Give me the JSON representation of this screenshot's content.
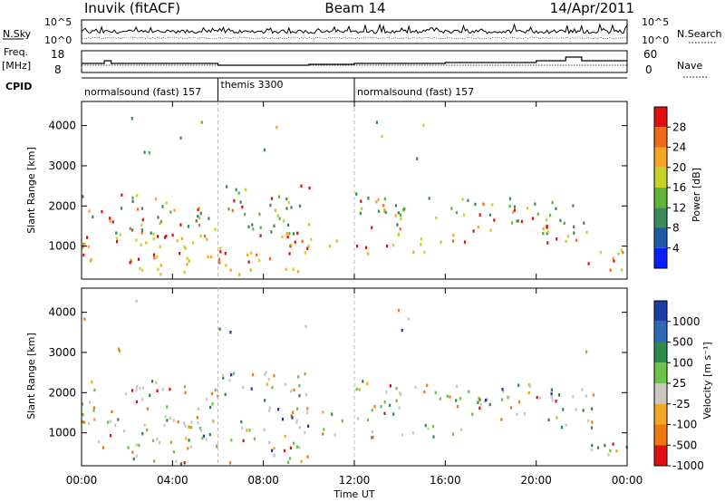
{
  "header": {
    "title_left": "Inuvik (fitACF)",
    "title_center": "Beam 14",
    "title_right": "14/Apr/2011"
  },
  "noise_panel": {
    "left_label": "N.Sky",
    "right_label": "N.Search",
    "left_ticks": [
      "10^5",
      "10^0"
    ],
    "right_ticks": [
      "10^5",
      "10^0"
    ]
  },
  "freq_panel": {
    "left_label_line1": "Freq.",
    "left_label_line2": "[MHz]",
    "right_label": "Nave",
    "left_ticks": [
      "18",
      "8"
    ],
    "right_ticks": [
      "60",
      "0"
    ]
  },
  "cpid": {
    "label": "CPID",
    "segments": [
      {
        "name": "normalsound (fast) 157",
        "start_hour": 0,
        "end_hour": 6
      },
      {
        "name": "themis 3300",
        "start_hour": 6,
        "end_hour": 12
      },
      {
        "name": "normalsound (fast) 157",
        "start_hour": 12,
        "end_hour": 24
      }
    ]
  },
  "chart_data": [
    {
      "type": "heatmap",
      "title": "",
      "xlabel": "Time UT",
      "ylabel": "Slant Range [km]",
      "xlim": [
        0,
        24
      ],
      "ylim": [
        180,
        4600
      ],
      "x_ticks": [
        "00:00",
        "04:00",
        "08:00",
        "12:00",
        "16:00",
        "20:00",
        "00:00"
      ],
      "y_ticks": [
        "1000",
        "2000",
        "3000",
        "4000"
      ],
      "y_tick_values": [
        1000,
        2000,
        3000,
        4000
      ],
      "colorbar": {
        "label": "Power [dB]",
        "ticks": [
          "4",
          "8",
          "12",
          "16",
          "20",
          "24",
          "28"
        ],
        "colors": [
          "#0a1eff",
          "#1f5aa8",
          "#3a8a5a",
          "#5fb33a",
          "#c7d227",
          "#f5a623",
          "#f06a1a",
          "#e01010"
        ]
      }
    },
    {
      "type": "heatmap",
      "title": "",
      "xlabel": "Time UT",
      "ylabel": "Slant Range [km]",
      "xlim": [
        0,
        24
      ],
      "ylim": [
        180,
        4600
      ],
      "x_ticks": [
        "00:00",
        "04:00",
        "08:00",
        "12:00",
        "16:00",
        "20:00",
        "00:00"
      ],
      "y_ticks": [
        "1000",
        "2000",
        "3000",
        "4000"
      ],
      "y_tick_values": [
        1000,
        2000,
        3000,
        4000
      ],
      "colorbar": {
        "label": "Velocity [m s⁻¹]",
        "ticks": [
          "1000",
          "500",
          "100",
          "25",
          "-25",
          "-100",
          "-500",
          "-1000"
        ],
        "colors": [
          "#1e3ca8",
          "#2e6ab5",
          "#2e8a4a",
          "#6cc24a",
          "#c8c8c0",
          "#f5a623",
          "#f07a10",
          "#e01010"
        ]
      }
    }
  ]
}
